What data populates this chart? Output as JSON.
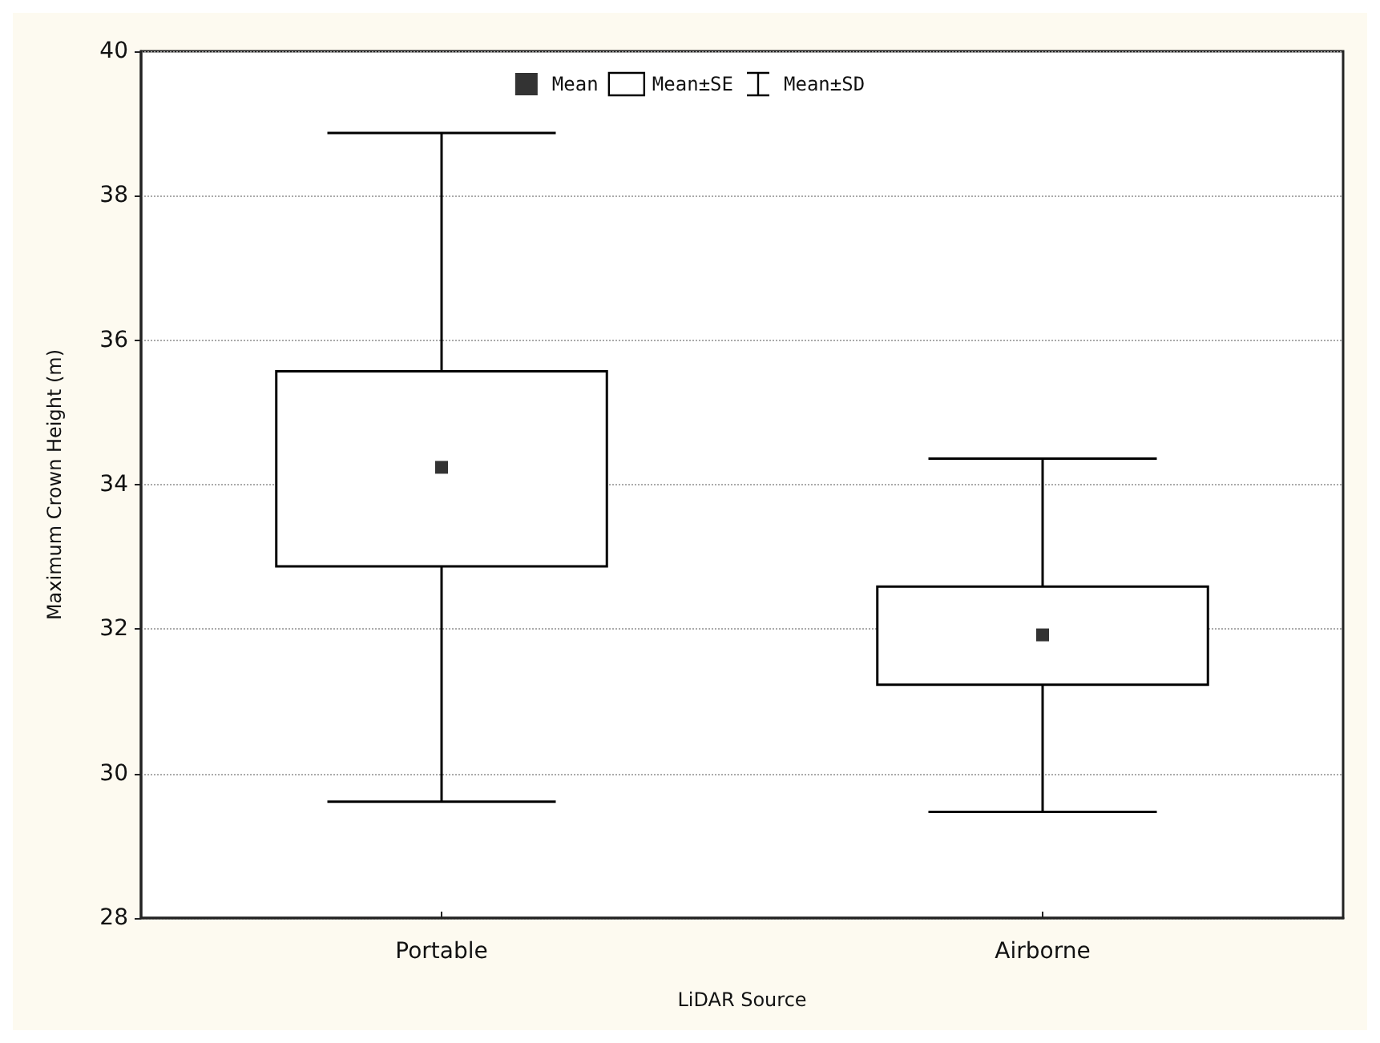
{
  "chart_data": {
    "type": "scatter",
    "xlabel": "LiDAR Source",
    "ylabel": "Maximum Crown Height (m)",
    "categories": [
      "Portable",
      "Airborne"
    ],
    "series": [
      {
        "name": "Mean",
        "marker": "square",
        "color": "#000000",
        "values": [
          34.24,
          31.92
        ],
        "errors": [
          [
            29.61,
            38.87
          ],
          [
            29.47,
            34.36
          ]
        ]
      },
      {
        "name": "Mean±SE",
        "type": "bar",
        "color": "#ffffff",
        "base": [
          32.87,
          31.23
        ],
        "values": [
          2.7,
          1.36
        ]
      }
    ],
    "annotations": [
      "Mean±SD"
    ],
    "ylim": [
      28,
      40
    ],
    "yticks": [
      28,
      30,
      32,
      34,
      36,
      38,
      40
    ],
    "grid": "y",
    "legend": "top"
  }
}
